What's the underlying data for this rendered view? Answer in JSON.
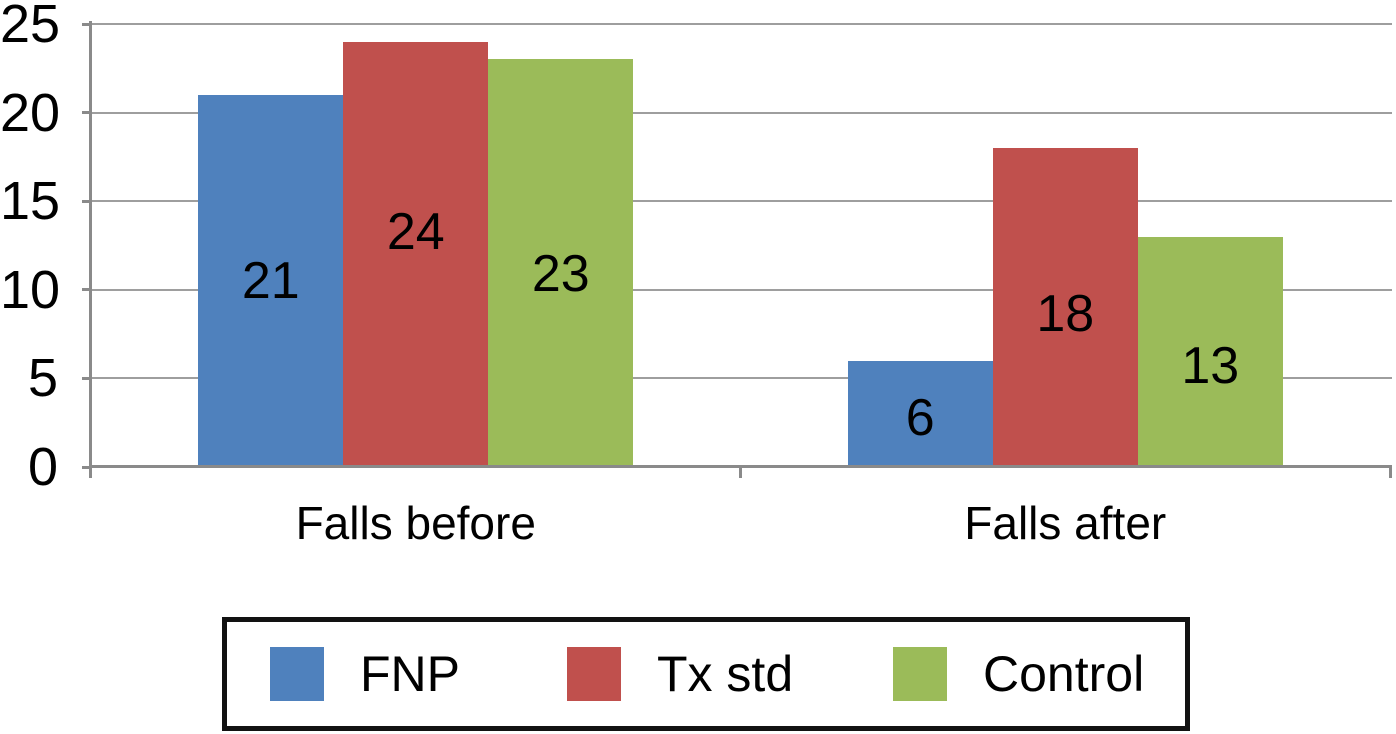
{
  "chart_data": {
    "type": "bar",
    "title": "",
    "categories": [
      "Falls before",
      "Falls after"
    ],
    "series": [
      {
        "name": "FNP",
        "color": "#4F81BD",
        "values": [
          21,
          6
        ]
      },
      {
        "name": "Tx std",
        "color": "#C0504D",
        "values": [
          24,
          18
        ]
      },
      {
        "name": "Control",
        "color": "#9BBB59",
        "values": [
          23,
          13
        ]
      }
    ],
    "ylim": [
      0,
      25
    ],
    "yticks": [
      0,
      5,
      10,
      15,
      20,
      25
    ],
    "grid": true,
    "value_labels": "inside-center",
    "legend_position": "bottom"
  },
  "colors": {
    "background": "#FFFFFF",
    "axis": "#8A8A8A",
    "gridline": "#9E9E9E",
    "text": "#000000",
    "legend_border": "#121212"
  }
}
